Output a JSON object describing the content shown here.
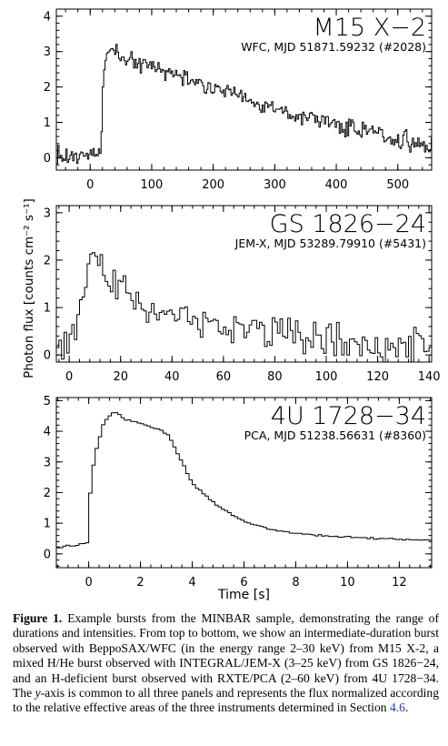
{
  "ylabel": "Photon flux [counts cm⁻² s⁻¹]",
  "colors": {
    "axis": "#000000",
    "link": "#1f3fbf"
  },
  "caption": {
    "label": "Figure 1.",
    "part1": " Example bursts from the MINBAR sample, demonstrating the range of durations and intensities. From top to bottom, we show an intermediate-duration burst observed with BeppoSAX/WFC (in the energy range 2–30 keV) from M15 X-2, a mixed H/He burst observed with INTEGRAL/JEM-X (3–25 keV) from GS 1826−24, and an H-deficient burst observed with RXTE/PCA (2–60 keV) from 4U 1728−34. The ",
    "yword": "y",
    "part2": "-axis is common to all three panels and represents the flux normalized according to the relative effective areas of the three instruments determined in Section ",
    "section": "4.6",
    "part3": "."
  },
  "chart_data": [
    {
      "type": "line",
      "step": true,
      "title": "M15 X−2",
      "subtitle": "WFC, MJD 51871.59232 (#2028)",
      "xlim": [
        -55,
        555
      ],
      "ylim": [
        -0.35,
        4.2
      ],
      "xticks": [
        0,
        100,
        200,
        300,
        400,
        500
      ],
      "yticks": [
        0,
        1,
        2,
        3,
        4
      ],
      "xlabel": "",
      "anchors": [
        [
          -55,
          0.05
        ],
        [
          -20,
          0.05
        ],
        [
          18,
          0.1
        ],
        [
          20,
          1.9
        ],
        [
          25,
          2.9
        ],
        [
          35,
          3.2
        ],
        [
          55,
          2.8
        ],
        [
          100,
          2.55
        ],
        [
          150,
          2.3
        ],
        [
          200,
          2.05
        ],
        [
          250,
          1.7
        ],
        [
          300,
          1.35
        ],
        [
          350,
          1.15
        ],
        [
          400,
          0.95
        ],
        [
          450,
          0.72
        ],
        [
          500,
          0.5
        ],
        [
          555,
          0.35
        ]
      ],
      "noise": 0.22,
      "bin": 2.2,
      "seed": 2028
    },
    {
      "type": "line",
      "step": true,
      "title": "GS 1826−24",
      "subtitle": "JEM-X, MJD 53289.79910 (#5431)",
      "xlim": [
        -5,
        141
      ],
      "ylim": [
        -0.15,
        3.15
      ],
      "xticks": [
        0,
        20,
        40,
        60,
        80,
        100,
        120,
        140
      ],
      "yticks": [
        0,
        1,
        2,
        3
      ],
      "xlabel": "",
      "anchors": [
        [
          -5,
          0.08
        ],
        [
          0,
          0.15
        ],
        [
          3,
          0.4
        ],
        [
          6,
          1.5
        ],
        [
          9,
          2.3
        ],
        [
          13,
          1.8
        ],
        [
          20,
          1.4
        ],
        [
          30,
          1.05
        ],
        [
          40,
          0.85
        ],
        [
          60,
          0.55
        ],
        [
          80,
          0.5
        ],
        [
          100,
          0.35
        ],
        [
          120,
          0.22
        ],
        [
          141,
          0.15
        ]
      ],
      "noise": 0.3,
      "bin": 1.0,
      "seed": 5431
    },
    {
      "type": "line",
      "step": true,
      "title": "4U 1728−34",
      "subtitle": "PCA, MJD 51238.56631 (#8360)",
      "xlim": [
        -1.25,
        13.25
      ],
      "ylim": [
        -0.45,
        5.1
      ],
      "xticks": [
        0,
        2,
        4,
        6,
        8,
        10,
        12
      ],
      "yticks": [
        0,
        1,
        2,
        3,
        4,
        5
      ],
      "xlabel": "Time [s]",
      "anchors": [
        [
          -1.25,
          0.2
        ],
        [
          -0.05,
          0.35
        ],
        [
          0.1,
          2.5
        ],
        [
          0.3,
          3.4
        ],
        [
          0.6,
          4.3
        ],
        [
          1.0,
          4.65
        ],
        [
          1.4,
          4.4
        ],
        [
          2.0,
          4.25
        ],
        [
          2.8,
          4.05
        ],
        [
          3.1,
          3.85
        ],
        [
          3.6,
          3.0
        ],
        [
          4.0,
          2.3
        ],
        [
          5.0,
          1.55
        ],
        [
          6.0,
          1.05
        ],
        [
          7.0,
          0.8
        ],
        [
          8.0,
          0.67
        ],
        [
          9.0,
          0.6
        ],
        [
          10.0,
          0.55
        ],
        [
          11.0,
          0.51
        ],
        [
          12.0,
          0.48
        ],
        [
          13.25,
          0.45
        ]
      ],
      "noise": 0.025,
      "bin": 0.125,
      "seed": 8360
    }
  ]
}
